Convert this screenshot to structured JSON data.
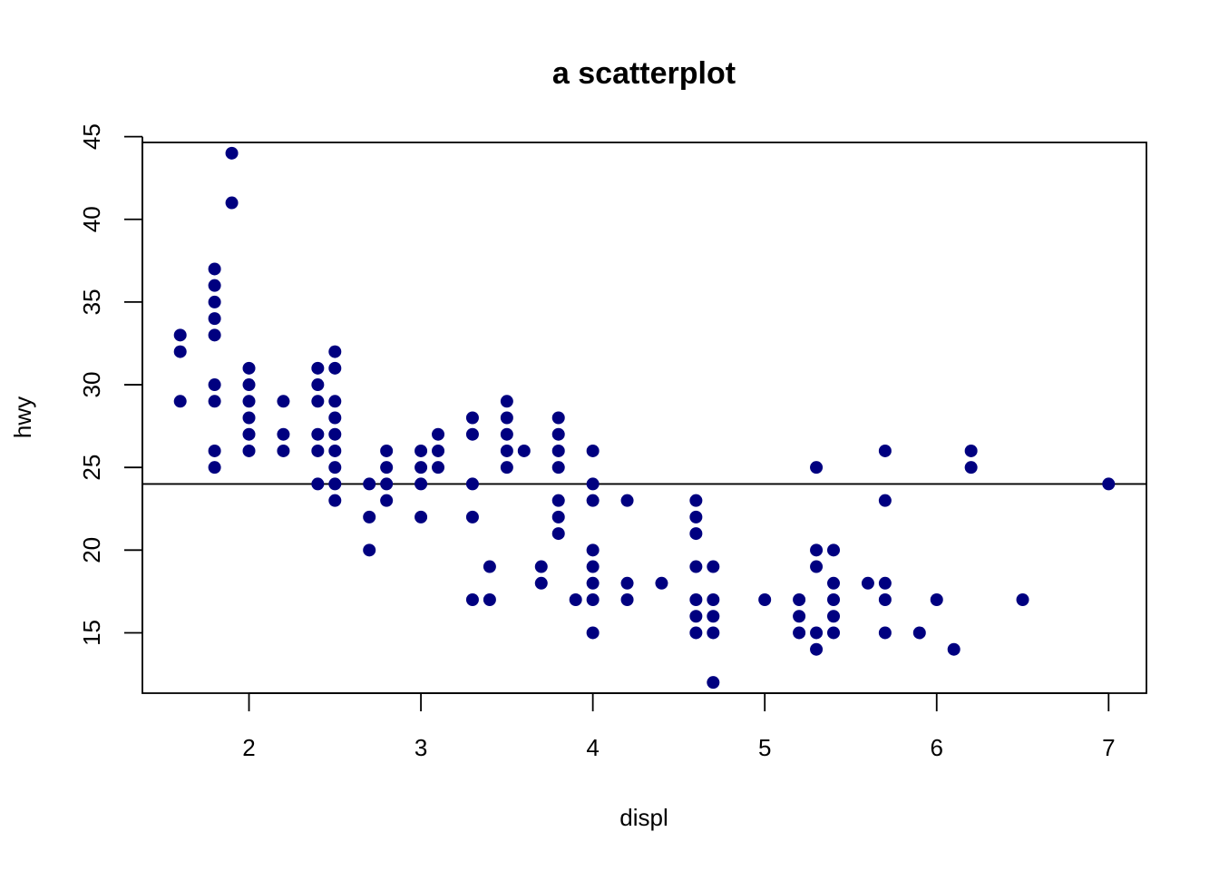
{
  "chart_data": {
    "type": "scatter",
    "title": "a scatterplot",
    "xlabel": "displ",
    "ylabel": "hwy",
    "xlim": [
      1.38,
      7.22
    ],
    "ylim": [
      11.35,
      44.65
    ],
    "xticks": [
      2,
      3,
      4,
      5,
      6,
      7
    ],
    "yticks": [
      15,
      20,
      25,
      30,
      35,
      40,
      45
    ],
    "hline": 24,
    "point_color": "#000080",
    "grid": false,
    "legend": "none",
    "points": [
      [
        1.6,
        33
      ],
      [
        1.6,
        32
      ],
      [
        1.6,
        29
      ],
      [
        1.8,
        37
      ],
      [
        1.8,
        36
      ],
      [
        1.8,
        35
      ],
      [
        1.8,
        34
      ],
      [
        1.8,
        33
      ],
      [
        1.8,
        30
      ],
      [
        1.8,
        29
      ],
      [
        1.8,
        26
      ],
      [
        1.8,
        25
      ],
      [
        1.9,
        44
      ],
      [
        1.9,
        41
      ],
      [
        2.0,
        31
      ],
      [
        2.0,
        30
      ],
      [
        2.0,
        29
      ],
      [
        2.0,
        28
      ],
      [
        2.0,
        27
      ],
      [
        2.0,
        26
      ],
      [
        2.2,
        29
      ],
      [
        2.2,
        27
      ],
      [
        2.2,
        26
      ],
      [
        2.4,
        31
      ],
      [
        2.4,
        30
      ],
      [
        2.4,
        29
      ],
      [
        2.4,
        27
      ],
      [
        2.4,
        26
      ],
      [
        2.4,
        24
      ],
      [
        2.5,
        32
      ],
      [
        2.5,
        31
      ],
      [
        2.5,
        29
      ],
      [
        2.5,
        28
      ],
      [
        2.5,
        27
      ],
      [
        2.5,
        26
      ],
      [
        2.5,
        25
      ],
      [
        2.5,
        24
      ],
      [
        2.5,
        23
      ],
      [
        2.7,
        24
      ],
      [
        2.7,
        22
      ],
      [
        2.7,
        20
      ],
      [
        2.8,
        26
      ],
      [
        2.8,
        25
      ],
      [
        2.8,
        24
      ],
      [
        2.8,
        23
      ],
      [
        3.0,
        26
      ],
      [
        3.0,
        25
      ],
      [
        3.0,
        24
      ],
      [
        3.0,
        22
      ],
      [
        3.1,
        27
      ],
      [
        3.1,
        26
      ],
      [
        3.1,
        25
      ],
      [
        3.3,
        28
      ],
      [
        3.3,
        27
      ],
      [
        3.3,
        24
      ],
      [
        3.3,
        22
      ],
      [
        3.3,
        17
      ],
      [
        3.4,
        19
      ],
      [
        3.4,
        17
      ],
      [
        3.5,
        29
      ],
      [
        3.5,
        28
      ],
      [
        3.5,
        27
      ],
      [
        3.5,
        26
      ],
      [
        3.5,
        25
      ],
      [
        3.6,
        26
      ],
      [
        3.7,
        19
      ],
      [
        3.7,
        18
      ],
      [
        3.8,
        28
      ],
      [
        3.8,
        27
      ],
      [
        3.8,
        26
      ],
      [
        3.8,
        25
      ],
      [
        3.8,
        23
      ],
      [
        3.8,
        22
      ],
      [
        3.8,
        21
      ],
      [
        3.9,
        17
      ],
      [
        4.0,
        26
      ],
      [
        4.0,
        24
      ],
      [
        4.0,
        23
      ],
      [
        4.0,
        20
      ],
      [
        4.0,
        19
      ],
      [
        4.0,
        18
      ],
      [
        4.0,
        17
      ],
      [
        4.0,
        15
      ],
      [
        4.2,
        23
      ],
      [
        4.2,
        18
      ],
      [
        4.2,
        17
      ],
      [
        4.4,
        18
      ],
      [
        4.6,
        23
      ],
      [
        4.6,
        22
      ],
      [
        4.6,
        21
      ],
      [
        4.6,
        19
      ],
      [
        4.6,
        17
      ],
      [
        4.6,
        16
      ],
      [
        4.6,
        15
      ],
      [
        4.7,
        19
      ],
      [
        4.7,
        17
      ],
      [
        4.7,
        16
      ],
      [
        4.7,
        15
      ],
      [
        4.7,
        12
      ],
      [
        5.0,
        17
      ],
      [
        5.2,
        17
      ],
      [
        5.2,
        16
      ],
      [
        5.2,
        15
      ],
      [
        5.3,
        25
      ],
      [
        5.3,
        20
      ],
      [
        5.3,
        19
      ],
      [
        5.3,
        15
      ],
      [
        5.3,
        14
      ],
      [
        5.4,
        20
      ],
      [
        5.4,
        18
      ],
      [
        5.4,
        17
      ],
      [
        5.4,
        16
      ],
      [
        5.4,
        15
      ],
      [
        5.6,
        18
      ],
      [
        5.7,
        26
      ],
      [
        5.7,
        23
      ],
      [
        5.7,
        18
      ],
      [
        5.7,
        17
      ],
      [
        5.7,
        15
      ],
      [
        5.9,
        15
      ],
      [
        6.0,
        17
      ],
      [
        6.1,
        14
      ],
      [
        6.2,
        26
      ],
      [
        6.2,
        25
      ],
      [
        6.5,
        17
      ],
      [
        7.0,
        24
      ]
    ]
  }
}
